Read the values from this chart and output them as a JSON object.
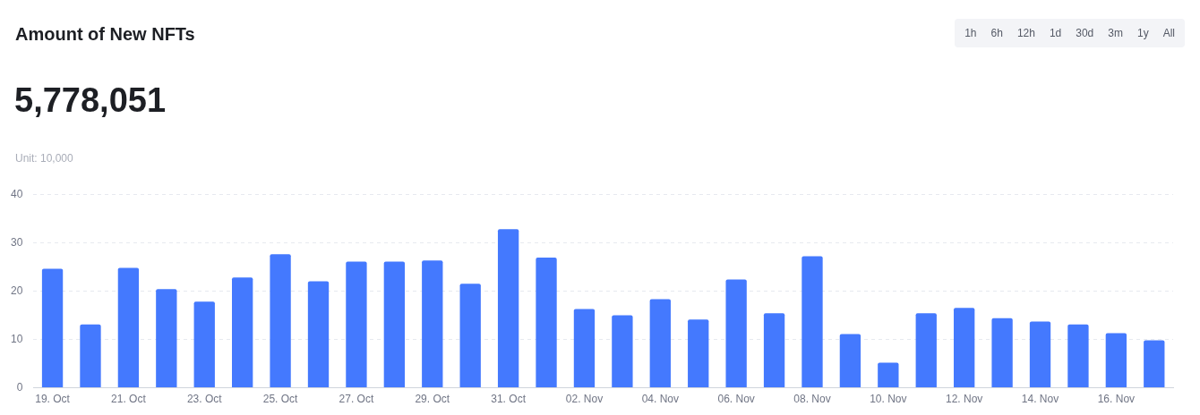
{
  "chart_data": {
    "type": "bar",
    "title": "Amount of New NFTs",
    "subtitle": "5,778,051",
    "annotations": [
      "Unit: 10,000",
      "1h",
      "6h",
      "12h",
      "1d",
      "30d",
      "3m",
      "1y",
      "All"
    ],
    "categories": [
      "19. Oct",
      null,
      "21. Oct",
      null,
      "23. Oct",
      null,
      "25. Oct",
      null,
      "27. Oct",
      null,
      "29. Oct",
      null,
      "31. Oct",
      null,
      "02. Nov",
      null,
      "04. Nov",
      null,
      "06. Nov",
      null,
      "08. Nov",
      null,
      "10. Nov",
      null,
      "12. Nov",
      null,
      "14. Nov",
      null,
      "16. Nov",
      null
    ],
    "values": [
      24.6,
      13.1,
      24.8,
      20.4,
      17.8,
      22.8,
      27.6,
      22.0,
      26.1,
      26.1,
      26.3,
      21.5,
      32.8,
      26.9,
      16.3,
      15.0,
      18.3,
      14.1,
      22.4,
      15.4,
      27.2,
      11.1,
      5.2,
      15.4,
      16.5,
      14.4,
      13.7,
      13.1,
      11.3,
      9.8
    ],
    "color": "#4479fe",
    "ylim": [
      0,
      40
    ],
    "yticks": [
      0,
      10,
      20,
      30,
      40
    ],
    "grid": "y",
    "legend": false
  }
}
